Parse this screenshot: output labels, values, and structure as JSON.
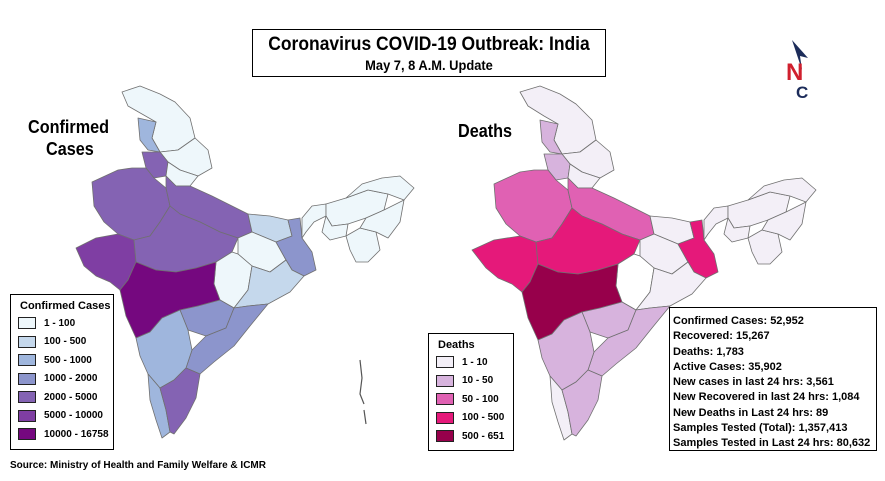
{
  "title": "Coronavirus COVID-19 Outbreak: India",
  "subtitle": "May 7, 8 A.M. Update",
  "logo": {
    "letter_top": "N",
    "letter_bottom": "C",
    "red": "#d0202e",
    "navy": "#1c2c5a"
  },
  "confirmed_map": {
    "label_line1": "Confirmed",
    "label_line2": "Cases",
    "legend_title": "Confirmed Cases",
    "legend": [
      {
        "label": "1 - 100",
        "color": "#eef7fb"
      },
      {
        "label": "100 - 500",
        "color": "#c5d8ec"
      },
      {
        "label": "500 - 1000",
        "color": "#9fb6dd"
      },
      {
        "label": "1000 - 2000",
        "color": "#8c95cc"
      },
      {
        "label": "2000 - 5000",
        "color": "#8463b3"
      },
      {
        "label": "5000 - 10000",
        "color": "#7f3ea3"
      },
      {
        "label": "10000 - 16758",
        "color": "#75087f"
      }
    ]
  },
  "deaths_map": {
    "label": "Deaths",
    "legend_title": "Deaths",
    "legend": [
      {
        "label": "1 - 10",
        "color": "#f3eff7"
      },
      {
        "label": "10 - 50",
        "color": "#d7b3dd"
      },
      {
        "label": "50 - 100",
        "color": "#e061b3"
      },
      {
        "label": "100 - 500",
        "color": "#e5197a"
      },
      {
        "label": "500 - 651",
        "color": "#97004b"
      }
    ]
  },
  "stats": [
    "Confirmed Cases: 52,952",
    "Recovered: 15,267",
    "Deaths: 1,783",
    "Active Cases:  35,902",
    "New cases in last 24 hrs: 3,561",
    "New Recovered in last 24 hrs: 1,084",
    "New Deaths in Last 24 hrs: 89",
    "Samples Tested (Total):  1,357,413",
    "Samples Tested in Last 24 hrs: 80,632"
  ],
  "source": "Source: Ministry of Health and Family Welfare & ICMR"
}
